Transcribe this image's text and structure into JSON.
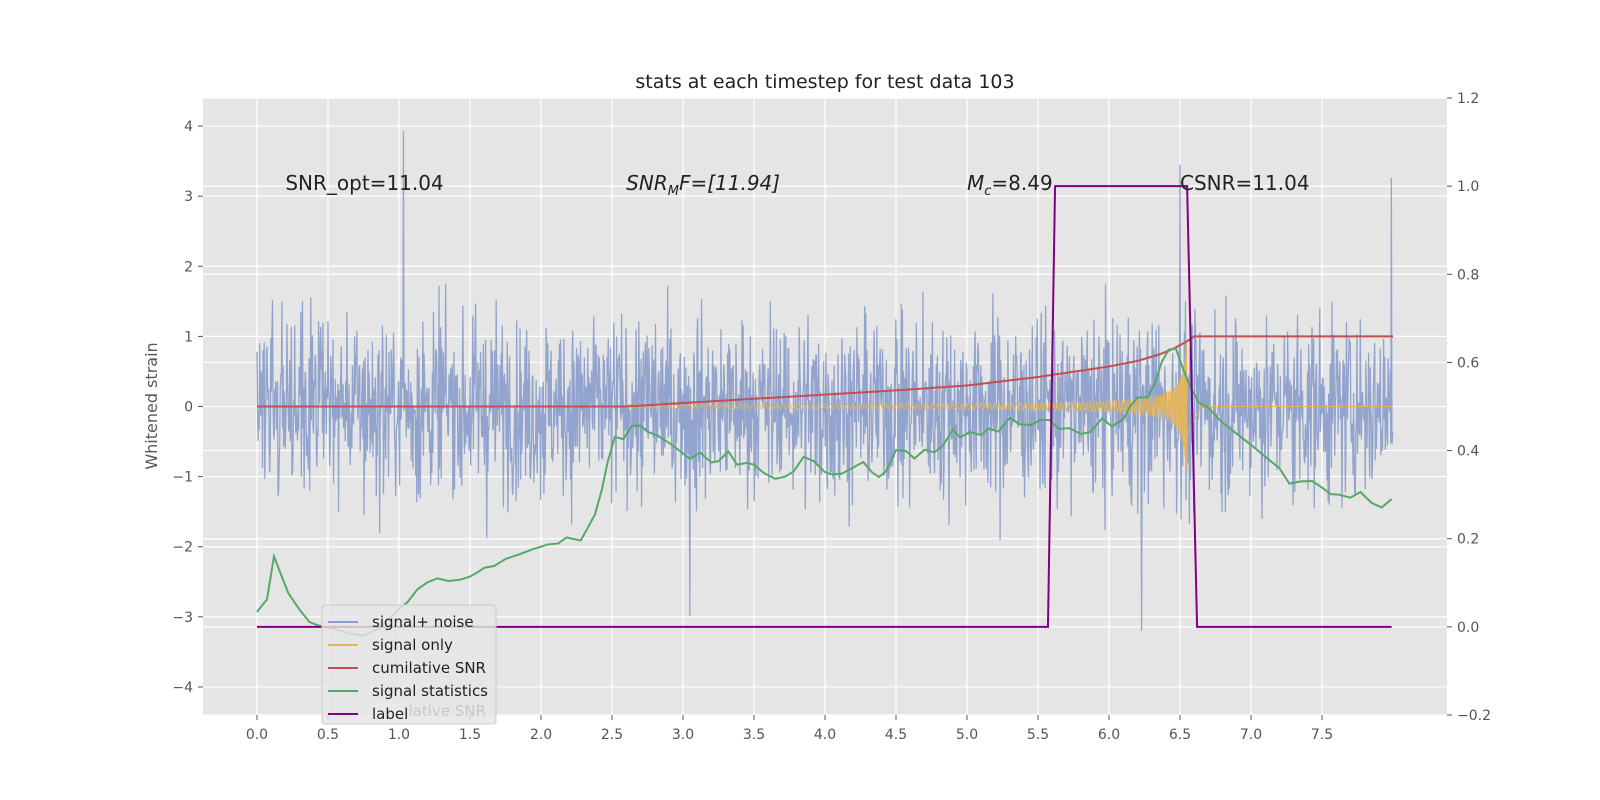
{
  "chart_data": {
    "type": "line",
    "title": "stats at each timestep for test data 103",
    "ylabel": "Whitened strain",
    "xlabel": "",
    "xlim": [
      -0.38,
      8.38
    ],
    "ylim_left": [
      -4.4,
      4.4
    ],
    "ylim_right": [
      -0.2,
      1.2
    ],
    "x_ticks": [
      0.0,
      0.5,
      1.0,
      1.5,
      2.0,
      2.5,
      3.0,
      3.5,
      4.0,
      4.5,
      5.0,
      5.5,
      6.0,
      6.5,
      7.0,
      7.5
    ],
    "x_tick_labels": [
      "0.0",
      "0.5",
      "1.0",
      "1.5",
      "2.0",
      "2.5",
      "3.0",
      "3.5",
      "4.0",
      "4.5",
      "5.0",
      "5.5",
      "6.0",
      "6.5",
      "7.0",
      "7.5"
    ],
    "y_ticks_left": [
      4,
      3,
      2,
      1,
      0,
      -1,
      -2,
      -3,
      -4
    ],
    "y_tick_labels_left": [
      "4",
      "3",
      "2",
      "1",
      "0",
      "−1",
      "−2",
      "−3",
      "−4"
    ],
    "y_ticks_right": [
      1.2,
      1.0,
      0.8,
      0.6,
      0.4,
      0.2,
      0.0,
      -0.2
    ],
    "y_tick_labels_right": [
      "1.2",
      "1.0",
      "0.8",
      "0.6",
      "0.4",
      "0.2",
      "0.0",
      "−0.2"
    ],
    "grid": true,
    "annotations": [
      {
        "text": "SNR_opt=11.04",
        "x": 0.2,
        "y": 3.2
      },
      {
        "text": "SNR_M F=[11.94]",
        "x": 2.6,
        "y": 3.2,
        "main": "SNR",
        "sub": "M",
        "rest": "F=[11.94]",
        "italic": true
      },
      {
        "text": "M_c=8.49",
        "x": 5.0,
        "y": 3.2,
        "main": "M",
        "sub": "c",
        "rest": "=8.49",
        "italic": true
      },
      {
        "text": "CSNR=11.04",
        "x": 6.5,
        "y": 3.2
      }
    ],
    "legend": {
      "placement": "lower-left",
      "entries": [
        "signal+ noise",
        "signal only",
        "cumilative SNR",
        "signal statistics",
        "label"
      ],
      "hidden_text": "cumilative SNR"
    },
    "series": [
      {
        "name": "signal+ noise",
        "color": "#8da0cb",
        "axis": "left",
        "x_range": [
          0.0,
          8.0
        ],
        "points": 2048,
        "noise_peaks": [
          [
            1.03,
            3.93
          ],
          [
            6.23,
            -3.2
          ],
          [
            7.99,
            3.26
          ],
          [
            3.05,
            -2.98
          ],
          [
            6.5,
            3.45
          ]
        ]
      },
      {
        "name": "signal only",
        "color": "#e5b559",
        "axis": "left",
        "x_range": [
          2.6,
          8.0
        ],
        "chirp_start": 2.6,
        "chirp_peak_t": 6.55,
        "chirp_peak_amplitude": 0.92
      },
      {
        "name": "cumilative SNR",
        "color": "#c44e52",
        "axis": "left",
        "x": [
          0.0,
          2.6,
          3.0,
          3.5,
          4.0,
          4.5,
          5.0,
          5.5,
          6.0,
          6.2,
          6.35,
          6.45,
          6.55,
          6.6,
          8.0
        ],
        "y": [
          0.0,
          0.0,
          0.05,
          0.11,
          0.17,
          0.23,
          0.3,
          0.42,
          0.57,
          0.65,
          0.74,
          0.82,
          0.93,
          1.0,
          1.0
        ]
      },
      {
        "name": "signal statistics",
        "color": "#55a868",
        "axis": "right",
        "x": [
          0.0,
          0.07,
          0.12,
          0.17,
          0.22,
          0.3,
          0.37,
          0.45,
          0.55,
          0.65,
          0.75,
          0.85,
          0.95,
          1.0,
          1.06,
          1.13,
          1.2,
          1.27,
          1.35,
          1.43,
          1.5,
          1.55,
          1.6,
          1.67,
          1.75,
          1.85,
          1.95,
          2.05,
          2.12,
          2.18,
          2.22,
          2.28,
          2.33,
          2.38,
          2.43,
          2.47,
          2.52,
          2.58,
          2.64,
          2.7,
          2.75,
          2.82,
          2.9,
          2.97,
          3.05,
          3.12,
          3.2,
          3.25,
          3.32,
          3.38,
          3.45,
          3.5,
          3.57,
          3.65,
          3.72,
          3.78,
          3.85,
          3.92,
          4.0,
          4.05,
          4.12,
          4.2,
          4.27,
          4.33,
          4.38,
          4.43,
          4.5,
          4.57,
          4.63,
          4.7,
          4.77,
          4.83,
          4.9,
          4.95,
          5.02,
          5.1,
          5.15,
          5.22,
          5.3,
          5.37,
          5.45,
          5.52,
          5.58,
          5.65,
          5.72,
          5.8,
          5.87,
          5.95,
          6.02,
          6.1,
          6.15,
          6.2,
          6.27,
          6.32,
          6.37,
          6.42,
          6.47,
          6.52,
          6.57,
          6.63,
          6.7,
          6.8,
          6.9,
          7.0,
          7.1,
          7.2,
          7.27,
          7.35,
          7.43,
          7.5,
          7.56,
          7.62,
          7.7,
          7.77,
          7.85,
          7.92,
          7.99
        ],
        "y": [
          0.034,
          0.062,
          0.16,
          0.118,
          0.077,
          0.039,
          0.011,
          0.001,
          -0.005,
          -0.015,
          -0.02,
          -0.005,
          0.025,
          0.041,
          0.056,
          0.085,
          0.101,
          0.11,
          0.104,
          0.107,
          0.114,
          0.123,
          0.134,
          0.138,
          0.154,
          0.165,
          0.177,
          0.187,
          0.189,
          0.203,
          0.2,
          0.196,
          0.225,
          0.255,
          0.313,
          0.375,
          0.431,
          0.426,
          0.456,
          0.457,
          0.443,
          0.434,
          0.418,
          0.401,
          0.381,
          0.396,
          0.373,
          0.376,
          0.398,
          0.368,
          0.372,
          0.368,
          0.349,
          0.336,
          0.341,
          0.353,
          0.386,
          0.376,
          0.351,
          0.346,
          0.348,
          0.362,
          0.374,
          0.351,
          0.34,
          0.353,
          0.401,
          0.399,
          0.382,
          0.402,
          0.396,
          0.411,
          0.448,
          0.43,
          0.442,
          0.435,
          0.45,
          0.443,
          0.474,
          0.46,
          0.458,
          0.47,
          0.469,
          0.449,
          0.451,
          0.438,
          0.442,
          0.473,
          0.455,
          0.471,
          0.501,
          0.52,
          0.521,
          0.55,
          0.6,
          0.629,
          0.632,
          0.587,
          0.546,
          0.51,
          0.497,
          0.463,
          0.438,
          0.413,
          0.386,
          0.36,
          0.325,
          0.33,
          0.331,
          0.316,
          0.301,
          0.3,
          0.293,
          0.306,
          0.281,
          0.271,
          0.29
        ]
      },
      {
        "name": "label",
        "color": "#800080",
        "axis": "right",
        "x": [
          0.0,
          5.57,
          5.62,
          6.55,
          6.62,
          7.99
        ],
        "y": [
          0.0,
          0.0,
          1.0,
          1.0,
          0.0,
          0.0
        ]
      }
    ]
  }
}
